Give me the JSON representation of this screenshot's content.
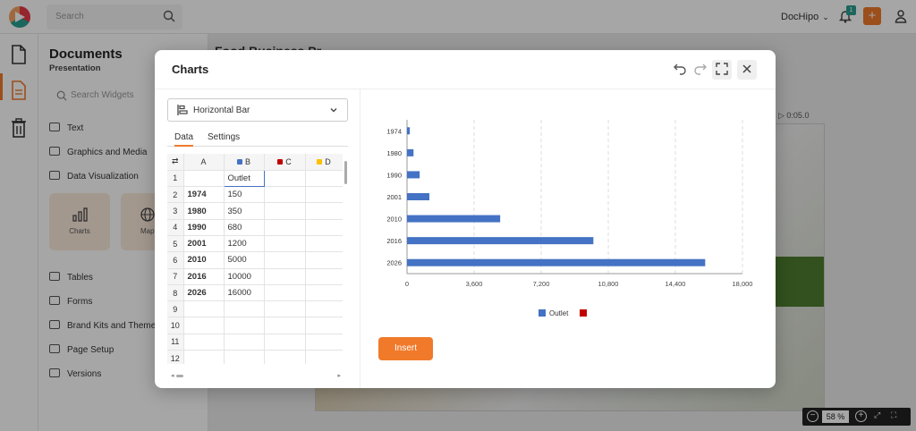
{
  "topbar": {
    "search_placeholder": "Search",
    "account_name": "DocHipo",
    "notification_count": "1"
  },
  "panel": {
    "title": "Documents",
    "subtitle": "Presentation",
    "search_placeholder": "Search Widgets",
    "items_top": [
      "Text",
      "Graphics and Media",
      "Data Visualization"
    ],
    "tiles": [
      "Charts",
      "Map"
    ],
    "items_bottom": [
      "Tables",
      "Forms",
      "Brand Kits and Themes",
      "Page Setup",
      "Versions"
    ]
  },
  "canvas": {
    "title": "Food Business Pr...",
    "time": "0:05.0",
    "zoom": "58",
    "zoom_unit": "%"
  },
  "modal": {
    "title": "Charts",
    "chart_type": "Horizontal Bar",
    "tabs": [
      "Data",
      "Settings"
    ],
    "insert_label": "Insert",
    "columns": [
      {
        "label": "A",
        "color": ""
      },
      {
        "label": "B",
        "color": "#4472c4"
      },
      {
        "label": "C",
        "color": "#c00000"
      },
      {
        "label": "D",
        "color": "#ffc000"
      }
    ],
    "rows": [
      {
        "n": "1",
        "a": "",
        "b": "Outlet"
      },
      {
        "n": "2",
        "a": "1974",
        "b": "150"
      },
      {
        "n": "3",
        "a": "1980",
        "b": "350"
      },
      {
        "n": "4",
        "a": "1990",
        "b": "680"
      },
      {
        "n": "5",
        "a": "2001",
        "b": "1200"
      },
      {
        "n": "6",
        "a": "2010",
        "b": "5000"
      },
      {
        "n": "7",
        "a": "2016",
        "b": "10000"
      },
      {
        "n": "8",
        "a": "2026",
        "b": "16000"
      },
      {
        "n": "9",
        "a": "",
        "b": ""
      },
      {
        "n": "10",
        "a": "",
        "b": ""
      },
      {
        "n": "11",
        "a": "",
        "b": ""
      },
      {
        "n": "12",
        "a": "",
        "b": ""
      }
    ]
  },
  "chart_data": {
    "type": "bar",
    "orientation": "horizontal",
    "categories": [
      "1974",
      "1980",
      "1990",
      "2001",
      "2010",
      "2016",
      "2026"
    ],
    "series": [
      {
        "name": "Outlet",
        "color": "#4472c4",
        "values": [
          150,
          350,
          680,
          1200,
          5000,
          10000,
          16000
        ]
      }
    ],
    "legend_extra_color": "#c00000",
    "xlim": [
      0,
      18000
    ],
    "xticks": [
      "0",
      "3,600",
      "7,200",
      "10,800",
      "14,400",
      "18,000"
    ],
    "grid": "vertical-dashed",
    "legend_position": "bottom"
  }
}
